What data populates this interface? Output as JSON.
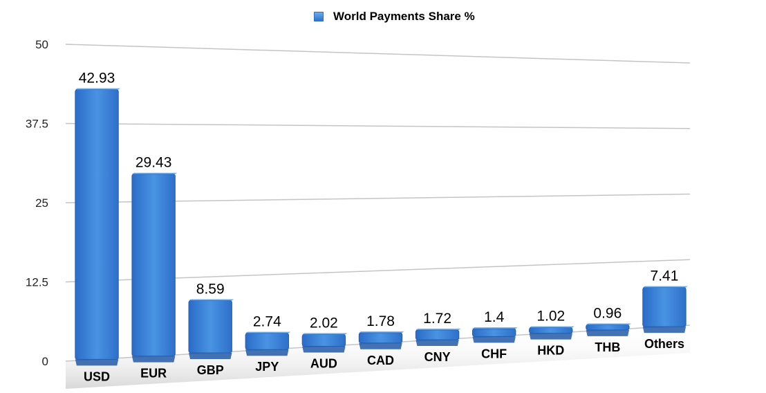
{
  "chart_data": {
    "type": "bar",
    "categories": [
      "USD",
      "EUR",
      "GBP",
      "JPY",
      "AUD",
      "CAD",
      "CNY",
      "CHF",
      "HKD",
      "THB",
      "Others"
    ],
    "series": [
      {
        "name": "World Payments Share %",
        "values": [
          42.93,
          29.43,
          8.59,
          2.74,
          2.02,
          1.78,
          1.72,
          1.4,
          1.02,
          0.96,
          7.41
        ]
      }
    ],
    "value_labels": [
      "42.93",
      "29.43",
      "8.59",
      "2.74",
      "2.02",
      "1.78",
      "1.72",
      "1.4",
      "1.02",
      "0.96",
      "7.41"
    ],
    "y_ticks": [
      "50",
      "37.5",
      "25",
      "12.5",
      "0"
    ],
    "ylim": [
      0,
      50
    ],
    "grid": true,
    "legend_position": "top-center",
    "bar_color": "#3b82d6"
  }
}
